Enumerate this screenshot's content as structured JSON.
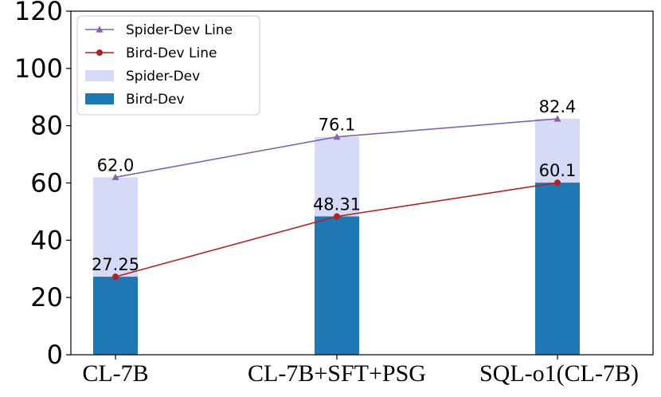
{
  "chart_data": {
    "type": "bar",
    "title": "",
    "xlabel": "",
    "ylabel": "",
    "categories": [
      "CL-7B",
      "CL-7B+SFT+PSG",
      "SQL-o1(CL-7B)"
    ],
    "ylim": [
      0,
      120
    ],
    "yticks": [
      "0",
      "20",
      "40",
      "60",
      "80",
      "100",
      "120"
    ],
    "grid": false,
    "legend_position": "top-left",
    "series": [
      {
        "name": "Spider-Dev",
        "kind": "bar",
        "color": "#d5dbf6",
        "values": [
          62.0,
          76.1,
          82.4
        ],
        "labels": [
          "62.0",
          "76.1",
          "82.4"
        ]
      },
      {
        "name": "Bird-Dev",
        "kind": "bar",
        "color": "#1f77b4",
        "values": [
          27.25,
          48.31,
          60.1
        ],
        "labels": [
          "27.25",
          "48.31",
          "60.1"
        ]
      },
      {
        "name": "Spider-Dev Line",
        "kind": "line",
        "marker": "triangle",
        "color": "#8064a9",
        "values": [
          62.0,
          76.1,
          82.4
        ]
      },
      {
        "name": "Bird-Dev Line",
        "kind": "line",
        "marker": "circle",
        "color": "#b22222",
        "values": [
          27.25,
          48.31,
          60.1
        ]
      }
    ],
    "legend": [
      "Spider-Dev Line",
      "Bird-Dev Line",
      "Spider-Dev",
      "Bird-Dev"
    ]
  }
}
